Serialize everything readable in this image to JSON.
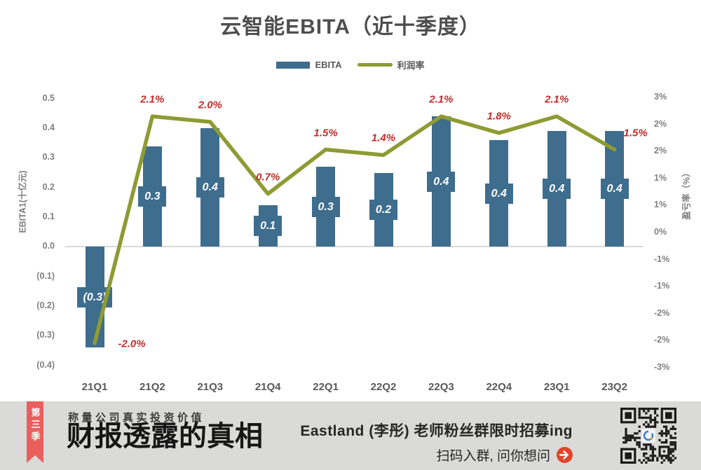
{
  "chart": {
    "title": "云智能EBITA（近十季度）",
    "legend": [
      {
        "label": "EBITA",
        "type": "bar"
      },
      {
        "label": "利润率",
        "type": "line"
      }
    ],
    "left_axis": {
      "title": "EBITA1(十亿元)",
      "ticks": [
        "0.5",
        "0.4",
        "0.3",
        "0.2",
        "0.1",
        "0.0",
        "(0.1)",
        "(0.2)",
        "(0.3)",
        "(0.4)"
      ]
    },
    "right_axis": {
      "title": "盈亏率（%）",
      "ticks": [
        "3%",
        "2%",
        "2%",
        "1%",
        "1%",
        "0%",
        "-1%",
        "-1%",
        "-2%",
        "-2%",
        "-3%"
      ]
    },
    "colors": {
      "bar": "#3e6d8e",
      "line": "#8e9b33",
      "label_red": "#bd2d2b",
      "grid": "#d9d9d9"
    },
    "chart_data": {
      "type": "bar+line",
      "title": "云智能EBITA（近十季度）",
      "categories": [
        "21Q1",
        "21Q2",
        "21Q3",
        "21Q4",
        "22Q1",
        "22Q2",
        "22Q3",
        "22Q4",
        "23Q1",
        "23Q2"
      ],
      "series": [
        {
          "name": "EBITA",
          "type": "bar",
          "axis": "left",
          "unit": "十亿元",
          "values": [
            -0.3,
            0.3,
            0.4,
            0.1,
            0.3,
            0.2,
            0.4,
            0.4,
            0.4,
            0.4
          ],
          "values_precise": [
            -0.34,
            0.34,
            0.4,
            0.14,
            0.27,
            0.25,
            0.44,
            0.36,
            0.39,
            0.39
          ],
          "labels": [
            "(0.3)",
            "0.3",
            "0.4",
            "0.1",
            "0.3",
            "0.2",
            "0.4",
            "0.4",
            "0.4",
            "0.4"
          ]
        },
        {
          "name": "利润率",
          "type": "line",
          "axis": "right",
          "unit": "%",
          "values": [
            -2.0,
            2.1,
            2.0,
            0.7,
            1.5,
            1.4,
            2.1,
            1.8,
            2.1,
            1.5
          ],
          "labels": [
            "-2.0%",
            "2.1%",
            "2.0%",
            "0.7%",
            "1.5%",
            "1.4%",
            "2.1%",
            "1.8%",
            "2.1%",
            "1.5%"
          ]
        }
      ],
      "left_ylim": [
        -0.4,
        0.5
      ],
      "right_ylim": [
        -3,
        3
      ],
      "ylabel_left": "EBITA1(十亿元)",
      "ylabel_right": "盈亏率（%）",
      "legend_position": "top",
      "grid": "zero-line-only"
    }
  },
  "banner": {
    "ribbon_text": "第三季",
    "subtitle": "称量公司真实投资价值",
    "title": "财报透露的真相",
    "promo_line1": "Eastland (李彤) 老师粉丝群限时招募ing",
    "promo_line2": "扫码入群, 问你想问",
    "colors": {
      "ribbon": "#ea5f5e",
      "arrow": "#e2452c",
      "bg": "#dadad8"
    }
  }
}
